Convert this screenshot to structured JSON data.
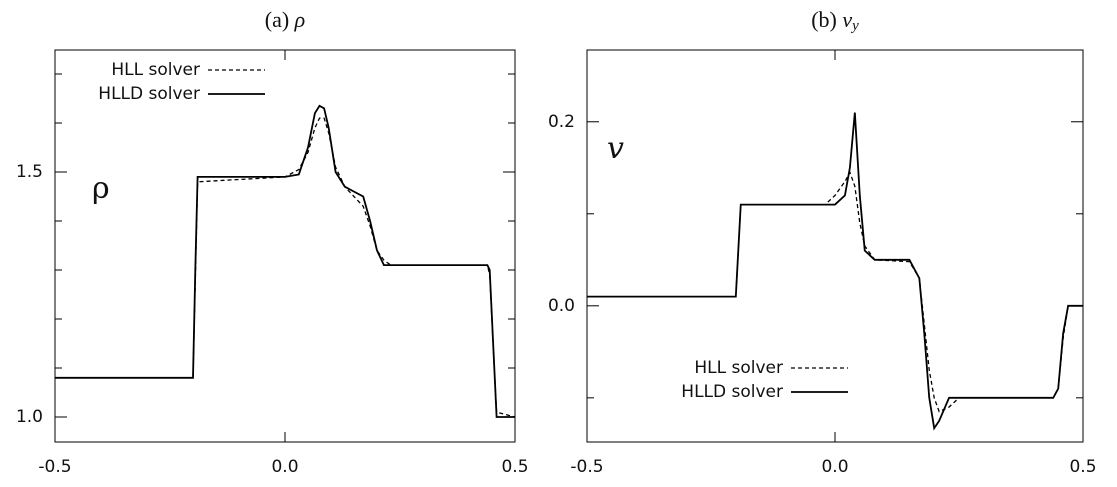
{
  "chart_data": [
    {
      "type": "line",
      "title_label": "(a)",
      "title_symbol": "ρ",
      "axis_symbol": "ρ",
      "x": [
        -0.5,
        -0.2,
        -0.195,
        -0.19,
        0.0,
        0.03,
        0.05,
        0.065,
        0.075,
        0.085,
        0.095,
        0.11,
        0.13,
        0.15,
        0.17,
        0.185,
        0.2,
        0.215,
        0.23,
        0.44,
        0.445,
        0.455,
        0.46,
        0.5
      ],
      "series": [
        {
          "name": "HLL solver",
          "color": "#000000",
          "line_style": "dashed",
          "values": [
            1.08,
            1.08,
            1.28,
            1.48,
            1.49,
            1.505,
            1.54,
            1.59,
            1.61,
            1.61,
            1.58,
            1.51,
            1.47,
            1.45,
            1.43,
            1.39,
            1.34,
            1.32,
            1.31,
            1.31,
            1.29,
            1.1,
            1.01,
            1.0
          ]
        },
        {
          "name": "HLLD solver",
          "color": "#000000",
          "line_style": "solid",
          "values": [
            1.08,
            1.08,
            1.3,
            1.49,
            1.49,
            1.495,
            1.55,
            1.62,
            1.635,
            1.63,
            1.59,
            1.5,
            1.47,
            1.46,
            1.45,
            1.4,
            1.34,
            1.31,
            1.31,
            1.31,
            1.3,
            1.1,
            1.0,
            1.0
          ]
        }
      ],
      "xlim": [
        -0.5,
        0.5
      ],
      "xticks": [
        -0.5,
        {
          "value": 0,
          "label": "0.0"
        },
        0.5
      ],
      "ylim": [
        0.949,
        1.749
      ],
      "yticks": [
        {
          "value": 1,
          "label": "1.0"
        },
        1.5
      ],
      "y_minor_ticks": [
        1.1,
        1.2,
        1.3,
        1.4,
        1.6,
        1.7
      ],
      "legend": "upper left"
    },
    {
      "type": "line",
      "title_label": "(b)",
      "title_symbol": "v",
      "title_subscript": "y",
      "axis_symbol": "v",
      "x": [
        -0.5,
        -0.2,
        -0.195,
        -0.19,
        -0.02,
        0.0,
        0.02,
        0.03,
        0.04,
        0.05,
        0.06,
        0.08,
        0.15,
        0.17,
        0.18,
        0.19,
        0.2,
        0.21,
        0.23,
        0.25,
        0.44,
        0.45,
        0.46,
        0.47,
        0.5
      ],
      "series": [
        {
          "name": "HLL solver",
          "color": "#000000",
          "line_style": "dashed",
          "values": [
            0.01,
            0.01,
            0.06,
            0.11,
            0.11,
            0.12,
            0.135,
            0.145,
            0.13,
            0.09,
            0.065,
            0.05,
            0.048,
            0.03,
            -0.02,
            -0.07,
            -0.1,
            -0.115,
            -0.11,
            -0.1,
            -0.1,
            -0.09,
            -0.035,
            0.0,
            0.0
          ]
        },
        {
          "name": "HLLD solver",
          "color": "#000000",
          "line_style": "solid",
          "values": [
            0.01,
            0.01,
            0.06,
            0.11,
            0.11,
            0.11,
            0.12,
            0.15,
            0.21,
            0.12,
            0.06,
            0.05,
            0.05,
            0.03,
            -0.03,
            -0.1,
            -0.133,
            -0.125,
            -0.1,
            -0.1,
            -0.1,
            -0.09,
            -0.03,
            0.0,
            0.0
          ]
        }
      ],
      "xlim": [
        -0.5,
        0.5
      ],
      "xticks": [
        -0.5,
        {
          "value": 0,
          "label": "0.0"
        },
        0.5
      ],
      "ylim": [
        -0.148,
        0.278
      ],
      "yticks": [
        {
          "value": 0,
          "label": "0.0"
        },
        0.2
      ],
      "y_minor_ticks": [
        -0.1,
        0.1
      ],
      "legend": "lower center"
    }
  ]
}
